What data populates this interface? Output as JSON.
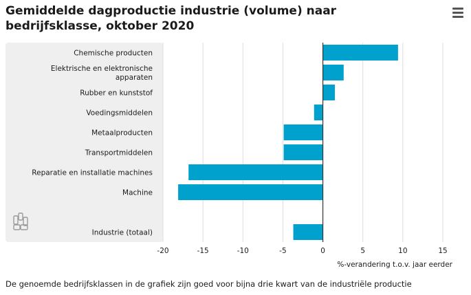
{
  "title": "Gemiddelde dagproductie industrie (volume) naar bedrijfsklasse, oktober 2020",
  "footnote": "De genoemde bedrijfsklassen in de grafiek zijn goed voor bijna drie kwart van de industriële productie",
  "logo_text": "cbs",
  "menu_icon": "hamburger-icon",
  "colors": {
    "bar": "#00a1cd",
    "panel": "#efefef",
    "grid": "#dddddd",
    "zero_line": "#333333"
  },
  "chart_data": {
    "type": "bar",
    "orientation": "horizontal",
    "categories": [
      [
        "Chemische producten"
      ],
      [
        "Elektrische en elektronische",
        "apparaten"
      ],
      [
        "Rubber en kunststof"
      ],
      [
        "Voedingsmiddelen"
      ],
      [
        "Metaalproducten"
      ],
      [
        "Transportmiddelen"
      ],
      [
        "Reparatie en installatie machines"
      ],
      [
        "Machine"
      ],
      [],
      [
        "Industrie (totaal)"
      ]
    ],
    "values": [
      9.4,
      2.6,
      1.5,
      -1.1,
      -4.9,
      -4.9,
      -16.8,
      -18.1,
      null,
      -3.7
    ],
    "xlabel": "%-verandering t.o.v. jaar eerder",
    "xlim": [
      -20,
      15
    ],
    "xticks": [
      -20,
      -15,
      -10,
      -5,
      0,
      5,
      10,
      15
    ],
    "grid": true
  }
}
